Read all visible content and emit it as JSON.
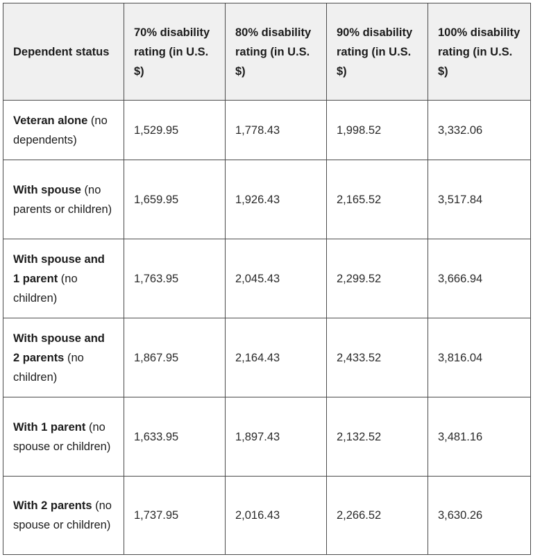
{
  "table": {
    "headers": [
      "Dependent status",
      "70% disability rating (in U.S. $)",
      "80% disability rating (in U.S. $)",
      "90% disability rating (in U.S. $)",
      "100% disability rating (in U.S. $)"
    ],
    "rows": [
      {
        "label_bold": "Veteran alone",
        "label_rest": " (no dependents)",
        "values": [
          "1,529.95",
          "1,778.43",
          "1,998.52",
          "3,332.06"
        ]
      },
      {
        "label_bold": "With spouse",
        "label_rest": " (no parents or children)",
        "values": [
          "1,659.95",
          "1,926.43",
          "2,165.52",
          "3,517.84"
        ]
      },
      {
        "label_bold": "With spouse and 1 parent",
        "label_rest": " (no children)",
        "values": [
          "1,763.95",
          "2,045.43",
          "2,299.52",
          "3,666.94"
        ]
      },
      {
        "label_bold": "With spouse and 2 parents",
        "label_rest": " (no children)",
        "values": [
          "1,867.95",
          "2,164.43",
          "2,433.52",
          "3,816.04"
        ]
      },
      {
        "label_bold": "With 1 parent",
        "label_rest": " (no spouse or children)",
        "values": [
          "1,633.95",
          "1,897.43",
          "2,132.52",
          "3,481.16"
        ]
      },
      {
        "label_bold": "With 2 parents",
        "label_rest": " (no spouse or children)",
        "values": [
          "1,737.95",
          "2,016.43",
          "2,266.52",
          "3,630.26"
        ]
      }
    ]
  },
  "colors": {
    "header_bg": "#f0f0f0",
    "border": "#4b4b4b",
    "text": "#1b1b1b"
  }
}
